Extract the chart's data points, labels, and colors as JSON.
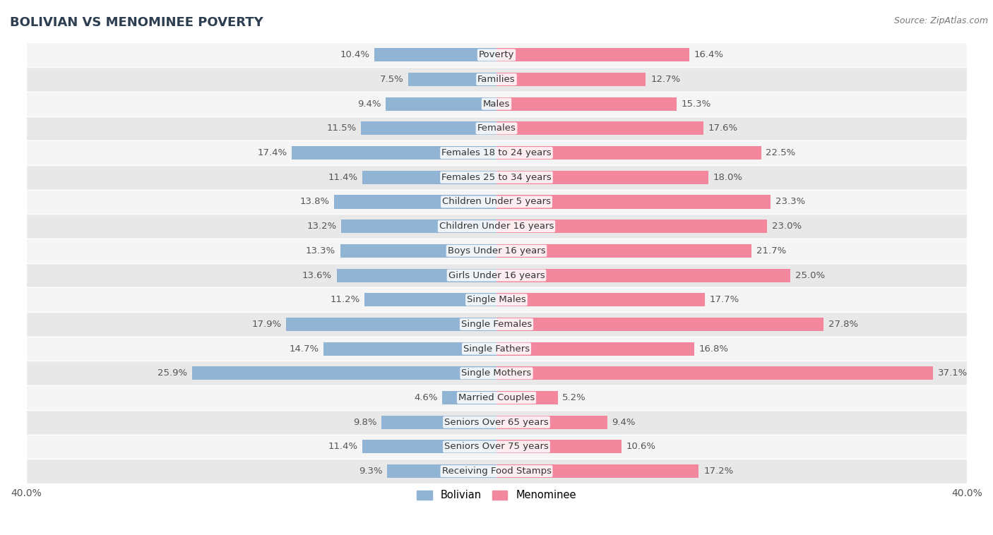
{
  "title": "BOLIVIAN VS MENOMINEE POVERTY",
  "source": "Source: ZipAtlas.com",
  "categories": [
    "Poverty",
    "Families",
    "Males",
    "Females",
    "Females 18 to 24 years",
    "Females 25 to 34 years",
    "Children Under 5 years",
    "Children Under 16 years",
    "Boys Under 16 years",
    "Girls Under 16 years",
    "Single Males",
    "Single Females",
    "Single Fathers",
    "Single Mothers",
    "Married Couples",
    "Seniors Over 65 years",
    "Seniors Over 75 years",
    "Receiving Food Stamps"
  ],
  "bolivian": [
    10.4,
    7.5,
    9.4,
    11.5,
    17.4,
    11.4,
    13.8,
    13.2,
    13.3,
    13.6,
    11.2,
    17.9,
    14.7,
    25.9,
    4.6,
    9.8,
    11.4,
    9.3
  ],
  "menominee": [
    16.4,
    12.7,
    15.3,
    17.6,
    22.5,
    18.0,
    23.3,
    23.0,
    21.7,
    25.0,
    17.7,
    27.8,
    16.8,
    37.1,
    5.2,
    9.4,
    10.6,
    17.2
  ],
  "bolivian_color": "#92b4d4",
  "menominee_color": "#f2879e",
  "background_color": "#ffffff",
  "row_color_even": "#f5f5f5",
  "row_color_odd": "#e8e8e8",
  "axis_limit": 40.0,
  "bar_height": 0.55,
  "label_fontsize": 9.5,
  "title_fontsize": 13,
  "source_fontsize": 9,
  "category_fontsize": 9.5
}
